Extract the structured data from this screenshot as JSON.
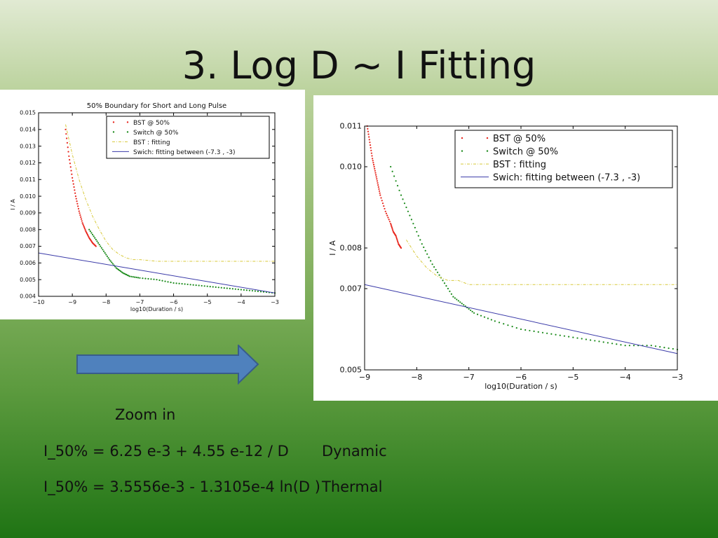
{
  "slide": {
    "title": "3. Log D ~ I Fitting",
    "zoom_label": "Zoom in",
    "equations": [
      {
        "formula": "I_50% = 6.25 e-3 + 4.55 e-12 / D",
        "tag": "Dynamic"
      },
      {
        "formula": "I_50% = 3.5556e-3 - 1.3105e-4 ln(D )",
        "tag": "Thermal"
      }
    ]
  },
  "colors": {
    "bst": "#e8251c",
    "switch": "#1a8a1a",
    "bst_fit": "#d8c93a",
    "switch_fit": "#3a3aa8",
    "arrow_fill": "#4f81bd",
    "arrow_stroke": "#385d8a"
  },
  "chart_data": [
    {
      "type": "scatter",
      "title": "50% Boundary for Short and Long Pulse",
      "xlabel": "log10(Duration / s)",
      "ylabel": "I / A",
      "xlim": [
        -10,
        -3
      ],
      "ylim": [
        0.004,
        0.015
      ],
      "xticks": [
        -10,
        -9,
        -8,
        -7,
        -6,
        -5,
        -4,
        -3
      ],
      "yticks": [
        0.004,
        0.005,
        0.006,
        0.007,
        0.008,
        0.009,
        0.01,
        0.011,
        0.012,
        0.013,
        0.014,
        0.015
      ],
      "ytick_labels": [
        "0.004",
        "0.005",
        "0.006",
        "0.007",
        "0.008",
        "0.009",
        "0.010",
        "0.011",
        "0.012",
        "0.013",
        "0.014",
        "0.015"
      ],
      "legend_position": "top-right",
      "grid": false,
      "series": [
        {
          "name": "BST @ 50%",
          "style": "dots",
          "x": [
            -9.2,
            -9.1,
            -9.0,
            -8.9,
            -8.8,
            -8.7,
            -8.6,
            -8.5,
            -8.4,
            -8.3
          ],
          "y": [
            0.014,
            0.0124,
            0.0111,
            0.01,
            0.0091,
            0.0084,
            0.0079,
            0.0075,
            0.0072,
            0.007
          ]
        },
        {
          "name": "Switch @ 50%",
          "style": "dots",
          "x": [
            -8.5,
            -8.3,
            -8.1,
            -7.9,
            -7.7,
            -7.5,
            -7.3,
            -7.0,
            -6.5,
            -6.0,
            -5.5,
            -5.0,
            -4.5,
            -4.0,
            -3.5,
            -3.0
          ],
          "y": [
            0.008,
            0.0074,
            0.0068,
            0.0062,
            0.0057,
            0.0054,
            0.0052,
            0.0051,
            0.005,
            0.0048,
            0.0047,
            0.0046,
            0.0045,
            0.0044,
            0.0043,
            0.0042
          ]
        },
        {
          "name": "BST : fitting",
          "style": "dashdot",
          "x": [
            -9.2,
            -9.0,
            -8.8,
            -8.6,
            -8.4,
            -8.2,
            -8.0,
            -7.8,
            -7.6,
            -7.4,
            -7.2,
            -7.0,
            -6.5,
            -6.0,
            -5.0,
            -4.0,
            -3.0
          ],
          "y": [
            0.0143,
            0.0125,
            0.011,
            0.0098,
            0.0088,
            0.008,
            0.0073,
            0.0068,
            0.0065,
            0.0063,
            0.0062,
            0.0062,
            0.0061,
            0.0061,
            0.0061,
            0.0061,
            0.0061
          ]
        },
        {
          "name": "Swich: fitting between (-7.3 , -3)",
          "style": "line",
          "x": [
            -10,
            -3
          ],
          "y": [
            0.0066,
            0.0042
          ]
        }
      ]
    },
    {
      "type": "scatter",
      "title": "",
      "xlabel": "log10(Duration / s)",
      "ylabel": "I / A",
      "xlim": [
        -9,
        -3
      ],
      "ylim": [
        0.005,
        0.011
      ],
      "xticks": [
        -9,
        -8,
        -7,
        -6,
        -5,
        -4,
        -3
      ],
      "yticks": [
        0.005,
        0.007,
        0.008,
        0.01,
        0.011
      ],
      "ytick_labels": [
        "0.005",
        "0.007",
        "0.008",
        "0.010",
        "0.011"
      ],
      "legend_position": "top-right",
      "grid": false,
      "series": [
        {
          "name": "BST @ 50%",
          "style": "dots",
          "x": [
            -8.95,
            -8.9,
            -8.85,
            -8.8,
            -8.75,
            -8.7,
            -8.6,
            -8.5,
            -8.45,
            -8.4,
            -8.35,
            -8.3
          ],
          "y": [
            0.011,
            0.0106,
            0.0102,
            0.0099,
            0.0096,
            0.0093,
            0.0089,
            0.0086,
            0.0084,
            0.0083,
            0.0081,
            0.008
          ]
        },
        {
          "name": "Switch @ 50%",
          "style": "dots",
          "x": [
            -8.5,
            -8.3,
            -8.1,
            -7.9,
            -7.7,
            -7.5,
            -7.3,
            -7.1,
            -6.9,
            -6.5,
            -6.0,
            -5.5,
            -5.0,
            -4.5,
            -4.0,
            -3.5,
            -3.0
          ],
          "y": [
            0.01,
            0.0093,
            0.0087,
            0.0081,
            0.0076,
            0.0072,
            0.0068,
            0.0066,
            0.0064,
            0.0062,
            0.006,
            0.0059,
            0.0058,
            0.0057,
            0.0056,
            0.0056,
            0.0055
          ]
        },
        {
          "name": "BST : fitting",
          "style": "dashdot",
          "x": [
            -8.2,
            -8.0,
            -7.8,
            -7.6,
            -7.4,
            -7.2,
            -7.0,
            -6.5,
            -6.0,
            -5.0,
            -4.0,
            -3.0
          ],
          "y": [
            0.0082,
            0.0078,
            0.0075,
            0.0073,
            0.0072,
            0.0072,
            0.0071,
            0.0071,
            0.0071,
            0.0071,
            0.0071,
            0.0071
          ]
        },
        {
          "name": "Swich: fitting between (-7.3 , -3)",
          "style": "line",
          "x": [
            -9.0,
            -3.0
          ],
          "y": [
            0.0071,
            0.0054
          ]
        }
      ]
    }
  ]
}
